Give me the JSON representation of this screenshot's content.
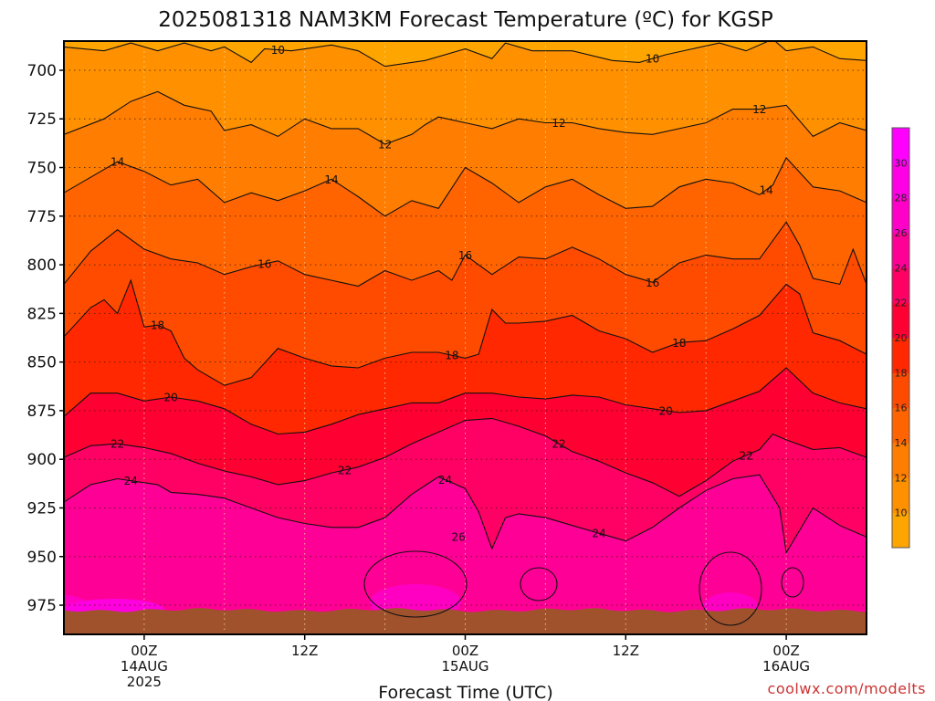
{
  "chart_data": {
    "type": "heatmap",
    "title": "2025081318 NAM3KM Forecast Temperature (ºC) for KGSP",
    "xlabel": "Forecast Time (UTC)",
    "ylabel": "",
    "credit": "coolwx.com/modelts",
    "x_ticks": [
      {
        "hour": 6,
        "lines": [
          "00Z",
          "14AUG",
          "2025"
        ]
      },
      {
        "hour": 18,
        "lines": [
          "12Z"
        ]
      },
      {
        "hour": 30,
        "lines": [
          "00Z",
          "15AUG"
        ]
      },
      {
        "hour": 42,
        "lines": [
          "12Z"
        ]
      },
      {
        "hour": 54,
        "lines": [
          "00Z",
          "16AUG"
        ]
      }
    ],
    "x_grid_hours": [
      6,
      12,
      18,
      24,
      30,
      36,
      42,
      48,
      54
    ],
    "xlim_hours": [
      0,
      60
    ],
    "y_ticks": [
      700,
      725,
      750,
      775,
      800,
      825,
      850,
      875,
      900,
      925,
      950,
      975
    ],
    "ylim_hpa": [
      685,
      990
    ],
    "colorbar": {
      "levels": [
        10,
        12,
        14,
        16,
        18,
        20,
        22,
        24,
        26,
        28,
        30
      ],
      "colors": [
        "#ffa500",
        "#ff9100",
        "#ff7d00",
        "#ff6400",
        "#ff4b00",
        "#ff2800",
        "#ff0032",
        "#ff0064",
        "#ff0096",
        "#ff00c8",
        "#ff00e6",
        "#ff00ff"
      ]
    },
    "ground_color": "#a0522d",
    "contours": [
      {
        "level": 10,
        "label": "10",
        "label_at_hours": [
          16,
          44
        ],
        "hours": [
          0,
          3,
          5,
          7,
          9,
          11,
          12,
          14,
          15,
          17,
          20,
          22,
          24,
          27,
          30,
          32,
          33,
          35,
          38,
          41,
          43,
          45,
          47,
          49,
          51,
          53,
          54,
          56,
          58,
          60
        ],
        "hpa": [
          688,
          690,
          686,
          690,
          686,
          690,
          688,
          696,
          689,
          690,
          687,
          690,
          698,
          695,
          689,
          694,
          686,
          690,
          690,
          695,
          696,
          692,
          689,
          686,
          690,
          684,
          690,
          688,
          694,
          695
        ]
      },
      {
        "level": 12,
        "label": "12",
        "label_at_hours": [
          24,
          37,
          52
        ],
        "hours": [
          0,
          3,
          5,
          7,
          9,
          11,
          12,
          14,
          16,
          18,
          20,
          22,
          24,
          26,
          27,
          28,
          30,
          32,
          34,
          36,
          38,
          40,
          42,
          44,
          46,
          48,
          50,
          52,
          54,
          56,
          58,
          60
        ],
        "hpa": [
          733,
          725,
          716,
          711,
          718,
          721,
          731,
          728,
          734,
          725,
          730,
          730,
          738,
          733,
          728,
          724,
          727,
          730,
          725,
          727,
          727,
          730,
          732,
          733,
          730,
          727,
          720,
          720,
          718,
          734,
          727,
          731
        ]
      },
      {
        "level": 14,
        "label": "14",
        "label_at_hours": [
          4,
          20,
          52.5
        ],
        "hours": [
          0,
          2,
          4,
          6,
          8,
          10,
          12,
          14,
          16,
          18,
          20,
          22,
          24,
          26,
          28,
          30,
          32,
          34,
          36,
          38,
          40,
          42,
          44,
          46,
          48,
          50,
          52,
          53,
          54,
          56,
          58,
          60
        ],
        "hpa": [
          763,
          755,
          747,
          752,
          759,
          756,
          768,
          763,
          767,
          762,
          756,
          765,
          775,
          767,
          771,
          750,
          758,
          768,
          760,
          756,
          764,
          771,
          770,
          760,
          756,
          758,
          764,
          759,
          745,
          760,
          762,
          768
        ]
      },
      {
        "level": 16,
        "label": "16",
        "label_at_hours": [
          15,
          30,
          44
        ],
        "hours": [
          0,
          2,
          4,
          6,
          8,
          10,
          12,
          14,
          16,
          18,
          20,
          22,
          24,
          26,
          28,
          29,
          30,
          32,
          34,
          36,
          38,
          40,
          42,
          44,
          46,
          48,
          50,
          52,
          54,
          55,
          56,
          58,
          59,
          60
        ],
        "hpa": [
          810,
          793,
          782,
          792,
          797,
          799,
          805,
          801,
          798,
          805,
          808,
          811,
          803,
          808,
          803,
          808,
          795,
          805,
          796,
          797,
          791,
          797,
          805,
          809,
          799,
          795,
          797,
          797,
          778,
          790,
          807,
          810,
          792,
          810
        ]
      },
      {
        "level": 18,
        "label": "18",
        "label_at_hours": [
          7,
          29,
          46
        ],
        "hours": [
          0,
          2,
          3,
          4,
          5,
          6,
          7,
          8,
          9,
          10,
          12,
          14,
          16,
          18,
          20,
          22,
          24,
          26,
          28,
          30,
          31,
          32,
          33,
          34,
          36,
          38,
          40,
          42,
          44,
          46,
          48,
          50,
          52,
          54,
          55,
          56,
          58,
          60
        ],
        "hpa": [
          837,
          822,
          818,
          825,
          808,
          832,
          831,
          834,
          848,
          854,
          862,
          858,
          843,
          848,
          852,
          853,
          848,
          845,
          845,
          848,
          846,
          823,
          830,
          830,
          829,
          826,
          834,
          838,
          845,
          840,
          839,
          833,
          826,
          810,
          815,
          835,
          839,
          846
        ]
      },
      {
        "level": 20,
        "label": "20",
        "label_at_hours": [
          8,
          45
        ],
        "hours": [
          0,
          2,
          4,
          6,
          8,
          10,
          12,
          14,
          16,
          18,
          20,
          22,
          24,
          26,
          28,
          30,
          32,
          34,
          36,
          38,
          40,
          42,
          44,
          46,
          48,
          50,
          52,
          54,
          56,
          58,
          60
        ],
        "hpa": [
          878,
          866,
          866,
          870,
          868,
          870,
          874,
          882,
          887,
          886,
          882,
          877,
          874,
          871,
          871,
          866,
          866,
          868,
          869,
          867,
          868,
          872,
          874,
          876,
          875,
          870,
          865,
          853,
          866,
          871,
          874
        ]
      },
      {
        "level": 22,
        "label": "22",
        "label_at_hours": [
          4,
          21,
          37,
          51
        ],
        "hours": [
          0,
          2,
          4,
          6,
          8,
          10,
          12,
          14,
          16,
          18,
          20,
          22,
          24,
          26,
          28,
          30,
          32,
          34,
          36,
          38,
          40,
          42,
          44,
          46,
          48,
          50,
          52,
          53,
          54,
          56,
          58,
          60
        ],
        "hpa": [
          899,
          893,
          892,
          894,
          897,
          902,
          906,
          909,
          913,
          911,
          907,
          904,
          899,
          892,
          886,
          880,
          879,
          883,
          888,
          896,
          901,
          907,
          912,
          919,
          911,
          901,
          895,
          887,
          890,
          895,
          894,
          899
        ]
      },
      {
        "level": 24,
        "label": "24",
        "label_at_hours": [
          5,
          28.5,
          40
        ],
        "hours": [
          0,
          2,
          4,
          6,
          7,
          8,
          10,
          12,
          14,
          16,
          18,
          20,
          22,
          24,
          26,
          28,
          30,
          31,
          32,
          33,
          34,
          36,
          38,
          40,
          42,
          44,
          46,
          48,
          50,
          52,
          53.5,
          54,
          56,
          58,
          60
        ],
        "hpa": [
          922,
          913,
          910,
          912,
          913,
          917,
          918,
          920,
          925,
          930,
          933,
          935,
          935,
          930,
          918,
          909,
          915,
          927,
          946,
          930,
          928,
          930,
          934,
          938,
          942,
          935,
          925,
          916,
          910,
          908,
          925,
          948,
          925,
          934,
          940
        ]
      }
    ]
  }
}
